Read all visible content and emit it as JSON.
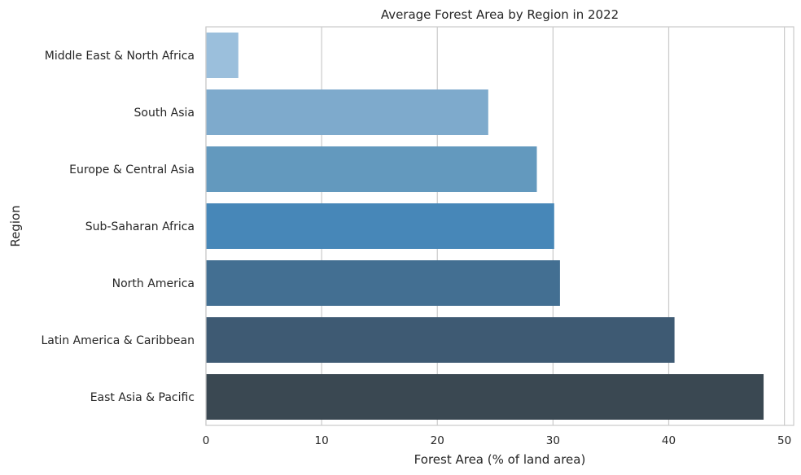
{
  "chart_data": {
    "type": "bar",
    "orientation": "horizontal",
    "title": "Average Forest Area by Region in 2022",
    "xlabel": "Forest Area (% of land area)",
    "ylabel": "Region",
    "xlim": [
      0,
      50.8
    ],
    "xticks": [
      0,
      10,
      20,
      30,
      40,
      50
    ],
    "grid": true,
    "categories": [
      "Middle East & North Africa",
      "South Asia",
      "Europe & Central Asia",
      "Sub-Saharan Africa",
      "North America",
      "Latin America & Caribbean",
      "East Asia & Pacific"
    ],
    "values": [
      2.8,
      24.4,
      28.6,
      30.1,
      30.6,
      40.5,
      48.2
    ],
    "colors": [
      "#9bbfdc",
      "#7eaacc",
      "#6399be",
      "#4787b8",
      "#436f92",
      "#3e5a73",
      "#3a4852"
    ]
  }
}
